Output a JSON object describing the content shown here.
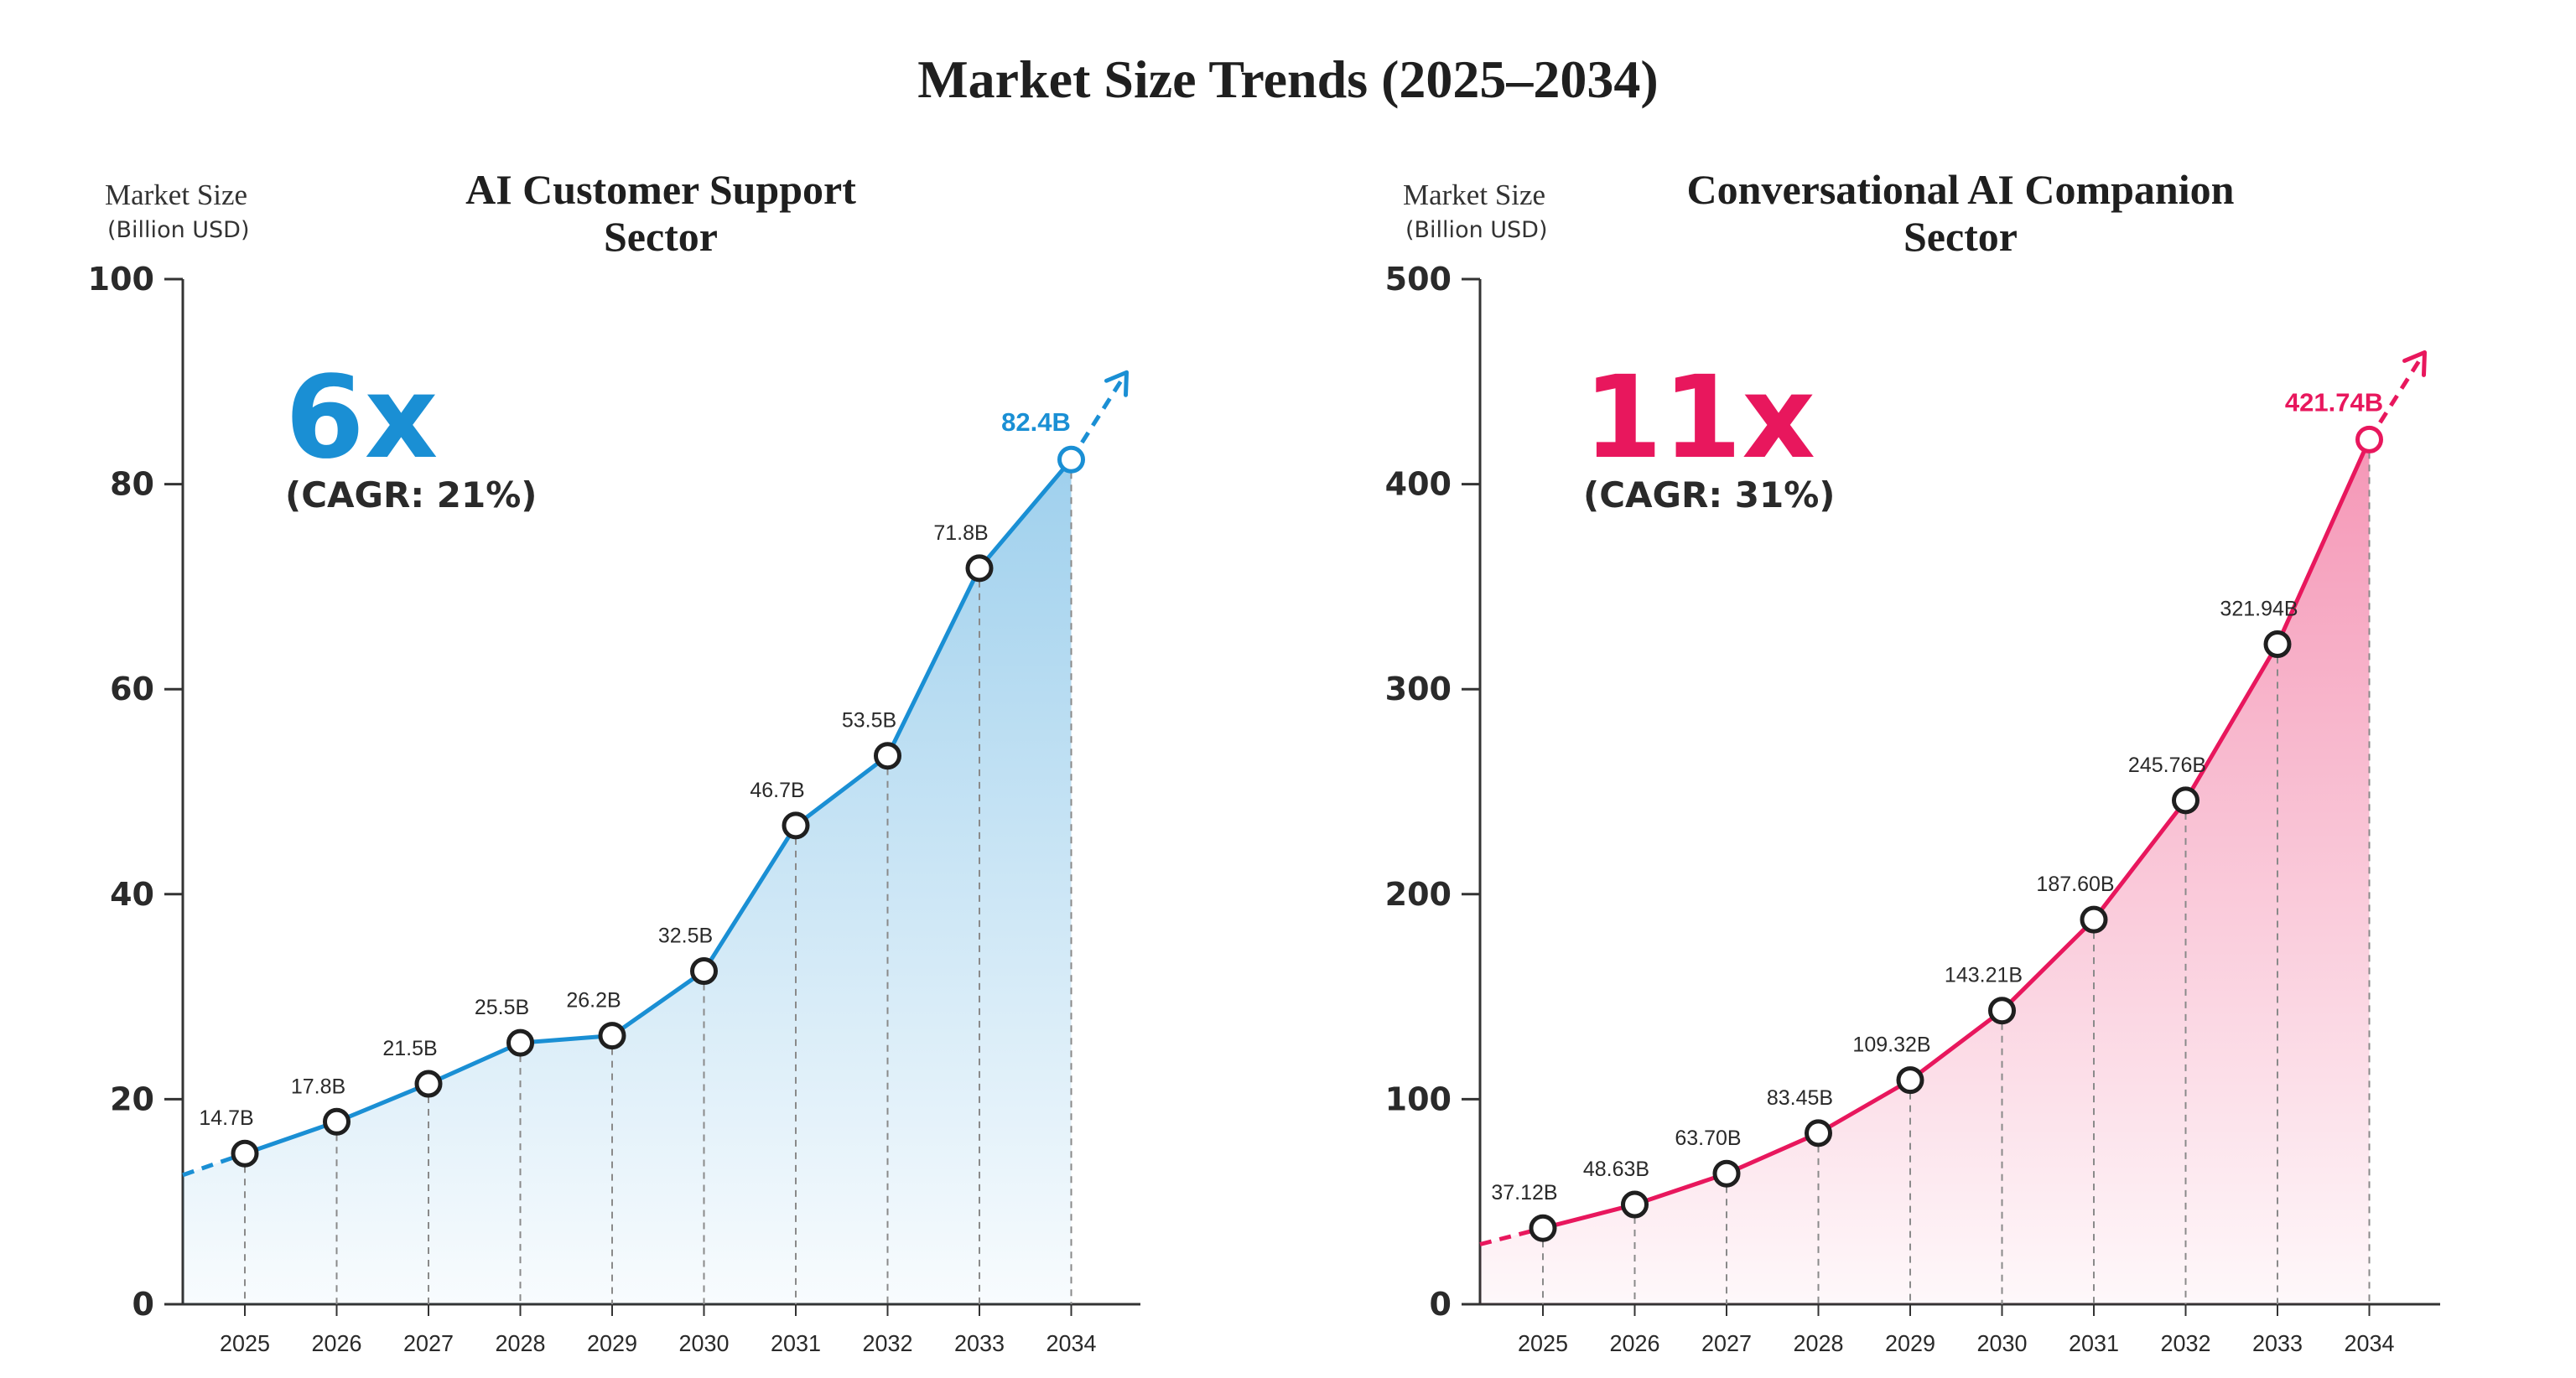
{
  "page": {
    "title": "Market Size Trends (2025–2034)"
  },
  "colors": {
    "text": "#1f1f1f",
    "axis": "#333333",
    "support": "#1a8fd4",
    "companion": "#e8175d"
  },
  "chart_data": [
    {
      "type": "area",
      "title": "AI Customer Support Sector",
      "title_lines": [
        "AI Customer Support",
        "Sector"
      ],
      "ylabel": "Market Size",
      "yunit": "(Billion USD)",
      "xlabel": "",
      "categories": [
        "2025",
        "2026",
        "2027",
        "2028",
        "2029",
        "2030",
        "2031",
        "2032",
        "2033",
        "2034"
      ],
      "series": [
        {
          "values": [
            14.7,
            17.8,
            21.5,
            25.5,
            26.2,
            32.5,
            46.7,
            53.5,
            71.8,
            82.4
          ],
          "labels": [
            "14.7B",
            "17.8B",
            "21.5B",
            "25.5B",
            "26.2B",
            "32.5B",
            "46.7B",
            "53.5B",
            "71.8B",
            "82.4B"
          ]
        }
      ],
      "ylim": [
        0,
        100
      ],
      "yticks": [
        0,
        20,
        40,
        60,
        80,
        100
      ],
      "grid": false,
      "legend": "none",
      "color": "#1a8fd4",
      "annotation": {
        "multiple": "6x",
        "cagr": "(CAGR: 21%)"
      }
    },
    {
      "type": "area",
      "title": "Conversational AI Companion Sector",
      "title_lines": [
        "Conversational AI Companion",
        "Sector"
      ],
      "ylabel": "Market Size",
      "yunit": "(Billion USD)",
      "xlabel": "",
      "categories": [
        "2025",
        "2026",
        "2027",
        "2028",
        "2029",
        "2030",
        "2031",
        "2032",
        "2033",
        "2034"
      ],
      "series": [
        {
          "values": [
            37.12,
            48.63,
            63.7,
            83.45,
            109.32,
            143.21,
            187.6,
            245.76,
            321.94,
            421.74
          ],
          "labels": [
            "37.12B",
            "48.63B",
            "63.70B",
            "83.45B",
            "109.32B",
            "143.21B",
            "187.60B",
            "245.76B",
            "321.94B",
            "421.74B"
          ]
        }
      ],
      "ylim": [
        0,
        500
      ],
      "yticks": [
        0,
        100,
        200,
        300,
        400,
        500
      ],
      "grid": false,
      "legend": "none",
      "color": "#e8175d",
      "annotation": {
        "multiple": "11x",
        "cagr": "(CAGR: 31%)"
      }
    }
  ]
}
